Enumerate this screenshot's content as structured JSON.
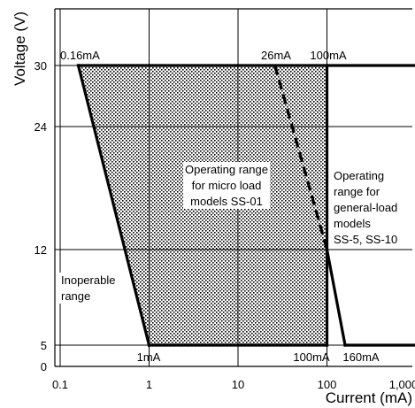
{
  "chart_data": {
    "type": "line",
    "xlabel": "Current (mA)",
    "ylabel": "Voltage (V)",
    "x_scale": "log",
    "xlim": [
      0.1,
      1000
    ],
    "x_ticks": [
      "0.1",
      "1",
      "10",
      "100",
      "1,000"
    ],
    "y_ticks": [
      "0",
      "5",
      "12",
      "24",
      "30"
    ],
    "grid": true,
    "colors": {
      "line": "#000000",
      "fill": "#000000",
      "background": "#ffffff"
    },
    "series": [
      {
        "points": [
          [
            0.16,
            30
          ],
          [
            1,
            5
          ]
        ]
      },
      {
        "points": [
          [
            26,
            30
          ],
          [
            100,
            12
          ]
        ]
      },
      {
        "points": [
          [
            100,
            30
          ],
          [
            100,
            5
          ]
        ]
      },
      {
        "points": [
          [
            100,
            12
          ],
          [
            160,
            5
          ]
        ]
      },
      {
        "points": [
          [
            0.16,
            30
          ],
          [
            1000,
            30
          ]
        ]
      },
      {
        "points": [
          [
            1,
            5
          ],
          [
            100,
            5
          ]
        ]
      },
      {
        "points": [
          [
            160,
            5
          ],
          [
            1000,
            5
          ]
        ]
      }
    ],
    "point_labels": [
      {
        "text": "0.16mA",
        "x": 0.16,
        "y": 30
      },
      {
        "text": "26mA",
        "x": 26,
        "y": 30
      },
      {
        "text": "100mA",
        "x": 100,
        "y": 30
      },
      {
        "text": "1mA",
        "x": 1,
        "y": 5
      },
      {
        "text": "100mA",
        "x": 100,
        "y": 5
      },
      {
        "text": "160mA",
        "x": 160,
        "y": 5
      }
    ],
    "annotations": [
      {
        "lines": [
          "Operating range",
          "for micro load",
          "models SS-01"
        ]
      },
      {
        "lines": [
          "Operating",
          "range for",
          "general-load",
          "models",
          "SS-5, SS-10"
        ]
      },
      {
        "lines": [
          "Inoperable",
          "range"
        ]
      }
    ]
  }
}
